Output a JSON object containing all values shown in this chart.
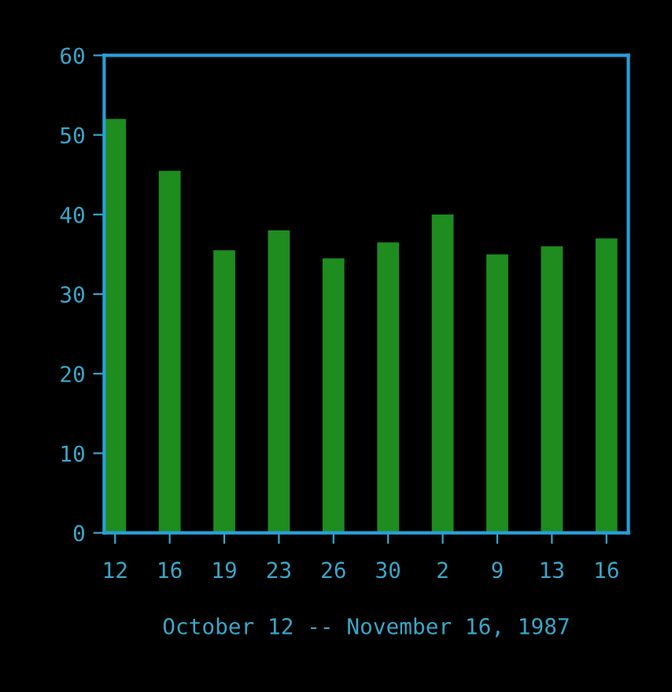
{
  "chart_data": {
    "type": "bar",
    "xlabel": "October 12 -- November 16, 1987",
    "categories": [
      "12",
      "16",
      "19",
      "23",
      "26",
      "30",
      "2",
      "9",
      "13",
      "16"
    ],
    "values": [
      52,
      45.5,
      35.5,
      38,
      34.5,
      36.5,
      40,
      35,
      36,
      37
    ],
    "color": "#1e8c1e",
    "ylim": [
      0,
      60
    ],
    "yticks": [
      0,
      10,
      20,
      30,
      40,
      50,
      60
    ],
    "grid": false,
    "legend": false
  }
}
